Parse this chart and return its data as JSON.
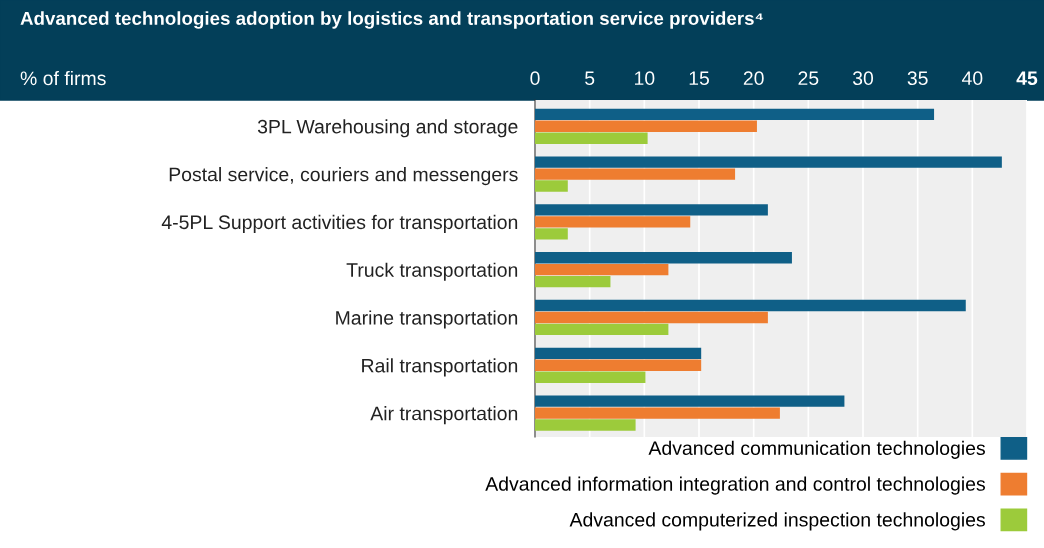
{
  "chart_data": {
    "type": "bar",
    "orientation": "horizontal",
    "title": "Advanced technologies adoption by logistics and transportation service providers⁴",
    "xlabel": "% of firms",
    "categories": [
      "3PL Warehousing and storage",
      "Postal service, couriers and messengers",
      "4-5PL Support activities for transportation",
      "Truck transportation",
      "Marine transportation",
      "Rail transportation",
      "Air transportation"
    ],
    "series": [
      {
        "name": "Advanced communication technologies",
        "color": "#0f5f87",
        "values": [
          36.5,
          42.7,
          21.3,
          23.5,
          39.4,
          15.2,
          28.3
        ]
      },
      {
        "name": "Advanced information integration and control technologies",
        "color": "#ee7d30",
        "values": [
          20.3,
          18.3,
          14.2,
          12.2,
          21.3,
          15.2,
          22.4
        ]
      },
      {
        "name": "Advanced computerized inspection technologies",
        "color": "#9ccb3b",
        "values": [
          10.3,
          3.0,
          3.0,
          6.9,
          12.2,
          10.1,
          9.2
        ]
      }
    ],
    "xlim": [
      0,
      45
    ],
    "xticks": [
      0,
      5,
      10,
      15,
      20,
      25,
      30,
      35,
      40,
      45
    ],
    "grid": "x",
    "legend": "bottom"
  }
}
